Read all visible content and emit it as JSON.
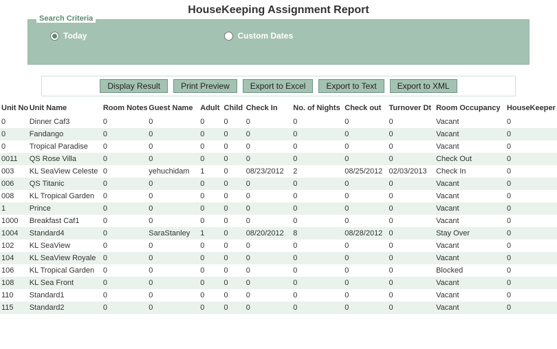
{
  "title": "HouseKeeping Assignment Report",
  "criteria": {
    "legend": "Search Criteria",
    "options": [
      {
        "label": "Today",
        "selected": true
      },
      {
        "label": "Custom Dates",
        "selected": false
      }
    ]
  },
  "buttons": {
    "display": "Display Result",
    "print": "Print Preview",
    "excel": "Export to Excel",
    "text": "Export to Text",
    "xml": "Export to XML"
  },
  "columns": [
    "Unit No",
    "Unit Name",
    "Room Notes",
    "Guest Name",
    "Adult",
    "Child",
    "Check In",
    "No. of Nights",
    "Check out",
    "Turnover Dt",
    "Room Occupancy",
    "HouseKeeper"
  ],
  "rows": [
    [
      "0",
      "Dinner Caf3",
      "0",
      "0",
      "0",
      "0",
      "0",
      "0",
      "0",
      "0",
      "Vacant",
      "0"
    ],
    [
      "0",
      "Fandango",
      "0",
      "0",
      "0",
      "0",
      "0",
      "0",
      "0",
      "0",
      "Vacant",
      "0"
    ],
    [
      "0",
      "Tropical Paradise",
      "0",
      "0",
      "0",
      "0",
      "0",
      "0",
      "0",
      "0",
      "Vacant",
      "0"
    ],
    [
      "0011",
      "QS Rose Villa",
      "0",
      "0",
      "0",
      "0",
      "0",
      "0",
      "0",
      "0",
      "Check Out",
      "0"
    ],
    [
      "003",
      "KL SeaView Celeste",
      "0",
      "yehuchidam",
      "1",
      "0",
      "08/23/2012",
      "2",
      "08/25/2012",
      "02/03/2013",
      "Check In",
      "0"
    ],
    [
      "006",
      "QS Titanic",
      "0",
      "0",
      "0",
      "0",
      "0",
      "0",
      "0",
      "0",
      "Vacant",
      "0"
    ],
    [
      "008",
      "KL Tropical Garden",
      "0",
      "0",
      "0",
      "0",
      "0",
      "0",
      "0",
      "0",
      "Vacant",
      "0"
    ],
    [
      "1",
      "Prince",
      "0",
      "0",
      "0",
      "0",
      "0",
      "0",
      "0",
      "0",
      "Vacant",
      "0"
    ],
    [
      "1000",
      "Breakfast Caf1",
      "0",
      "0",
      "0",
      "0",
      "0",
      "0",
      "0",
      "0",
      "Vacant",
      "0"
    ],
    [
      "1004",
      "Standard4",
      "0",
      "SaraStanley",
      "1",
      "0",
      "08/20/2012",
      "8",
      "08/28/2012",
      "0",
      "Stay Over",
      "0"
    ],
    [
      "102",
      "KL SeaView",
      "0",
      "0",
      "0",
      "0",
      "0",
      "0",
      "0",
      "0",
      "Vacant",
      "0"
    ],
    [
      "104",
      "KL SeaView Royale",
      "0",
      "0",
      "0",
      "0",
      "0",
      "0",
      "0",
      "0",
      "Vacant",
      "0"
    ],
    [
      "106",
      "KL Tropical Garden",
      "0",
      "0",
      "0",
      "0",
      "0",
      "0",
      "0",
      "0",
      "Blocked",
      "0"
    ],
    [
      "108",
      "KL Sea Front",
      "0",
      "0",
      "0",
      "0",
      "0",
      "0",
      "0",
      "0",
      "Vacant",
      "0"
    ],
    [
      "110",
      "Standard1",
      "0",
      "0",
      "0",
      "0",
      "0",
      "0",
      "0",
      "0",
      "Vacant",
      "0"
    ],
    [
      "115",
      "Standard2",
      "0",
      "0",
      "0",
      "0",
      "0",
      "0",
      "0",
      "0",
      "Vacant",
      "0"
    ]
  ],
  "colors": {
    "panel_bg": "#a4c2b2",
    "row_alt": "#eaf2ed",
    "legend_text": "#5c8a70"
  }
}
